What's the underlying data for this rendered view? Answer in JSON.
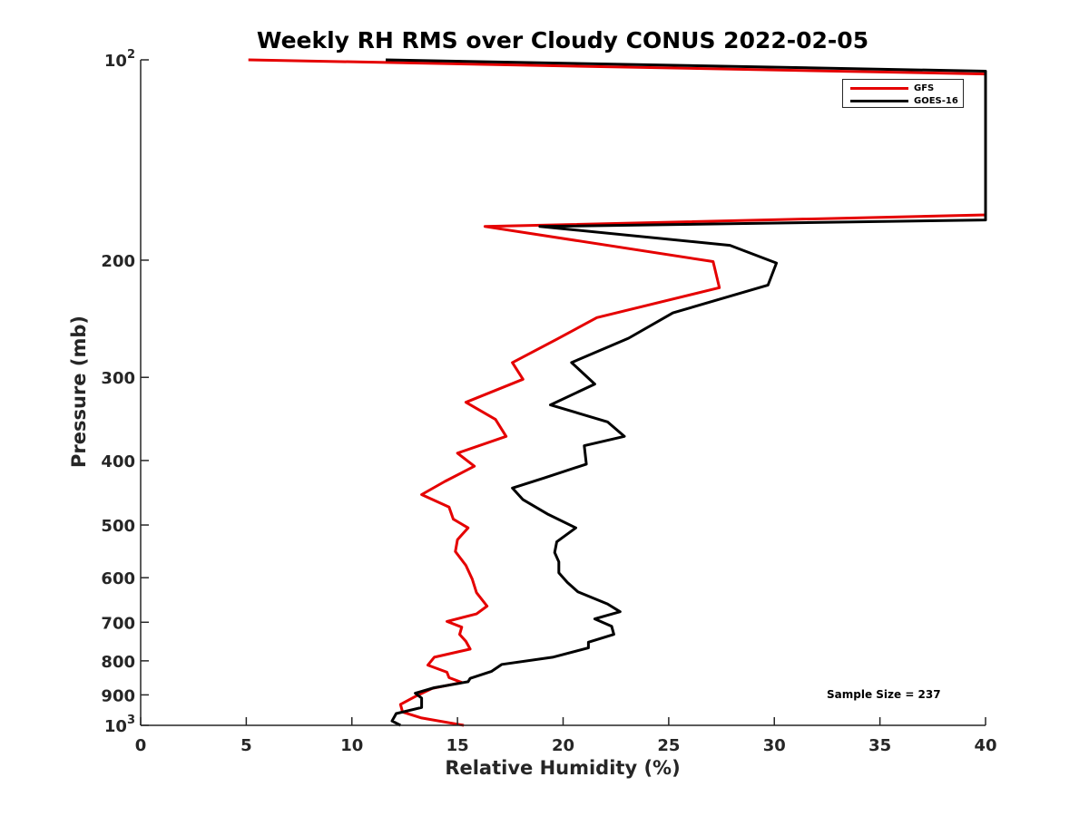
{
  "chart_data": {
    "type": "line",
    "title": "Weekly RH RMS over Cloudy CONUS 2022-02-05",
    "xlabel": "Relative Humidity (%)",
    "ylabel": "Pressure (mb)",
    "xlim": [
      0,
      40
    ],
    "ylim": [
      100,
      1000
    ],
    "y_scale": "log",
    "y_reversed": true,
    "grid": false,
    "legend_position": "top-right",
    "xticks": [
      "0",
      "5",
      "10",
      "15",
      "20",
      "25",
      "30",
      "35",
      "40"
    ],
    "yticks": [
      {
        "value": 100,
        "base": "10",
        "exp": "2"
      },
      {
        "value": 200,
        "label": "200"
      },
      {
        "value": 300,
        "label": "300"
      },
      {
        "value": 400,
        "label": "400"
      },
      {
        "value": 500,
        "label": "500"
      },
      {
        "value": 600,
        "label": "600"
      },
      {
        "value": 700,
        "label": "700"
      },
      {
        "value": 800,
        "label": "800"
      },
      {
        "value": 900,
        "label": "900"
      },
      {
        "value": 1000,
        "base": "10",
        "exp": "3"
      }
    ],
    "annotation": "Sample Size = 237",
    "series": [
      {
        "name": "GFS",
        "color": "#e50000",
        "points": [
          [
            5.1,
            100
          ],
          [
            40,
            105
          ],
          [
            40,
            171
          ],
          [
            16.3,
            178
          ],
          [
            27.1,
            201
          ],
          [
            27.4,
            220
          ],
          [
            21.6,
            244
          ],
          [
            19.7,
            263
          ],
          [
            17.6,
            285
          ],
          [
            18.1,
            302
          ],
          [
            15.4,
            327
          ],
          [
            16.8,
            347
          ],
          [
            17.3,
            368
          ],
          [
            15.0,
            390
          ],
          [
            15.8,
            408
          ],
          [
            14.4,
            430
          ],
          [
            13.3,
            450
          ],
          [
            14.6,
            470
          ],
          [
            14.8,
            490
          ],
          [
            15.5,
            505
          ],
          [
            15.0,
            526
          ],
          [
            14.9,
            548
          ],
          [
            15.4,
            575
          ],
          [
            15.7,
            603
          ],
          [
            15.9,
            632
          ],
          [
            16.4,
            662
          ],
          [
            15.9,
            680
          ],
          [
            14.5,
            698
          ],
          [
            15.2,
            712
          ],
          [
            15.1,
            730
          ],
          [
            15.4,
            748
          ],
          [
            15.6,
            768
          ],
          [
            13.9,
            790
          ],
          [
            13.6,
            812
          ],
          [
            14.5,
            832
          ],
          [
            14.6,
            848
          ],
          [
            15.2,
            862
          ],
          [
            13.8,
            880
          ],
          [
            13.0,
            905
          ],
          [
            12.3,
            930
          ],
          [
            12.4,
            955
          ],
          [
            13.3,
            975
          ],
          [
            15.3,
            1000
          ]
        ]
      },
      {
        "name": "GOES-16",
        "color": "#000000",
        "points": [
          [
            11.6,
            100
          ],
          [
            40,
            104
          ],
          [
            40,
            174
          ],
          [
            18.9,
            178
          ],
          [
            27.9,
            190
          ],
          [
            30.1,
            202
          ],
          [
            29.7,
            218
          ],
          [
            25.2,
            240
          ],
          [
            23.1,
            262
          ],
          [
            20.4,
            285
          ],
          [
            21.5,
            307
          ],
          [
            19.4,
            330
          ],
          [
            22.1,
            350
          ],
          [
            22.9,
            368
          ],
          [
            21.0,
            380
          ],
          [
            21.1,
            405
          ],
          [
            19.1,
            425
          ],
          [
            17.6,
            440
          ],
          [
            18.1,
            458
          ],
          [
            19.3,
            482
          ],
          [
            20.6,
            505
          ],
          [
            19.7,
            530
          ],
          [
            19.6,
            550
          ],
          [
            19.8,
            568
          ],
          [
            19.8,
            590
          ],
          [
            20.2,
            610
          ],
          [
            20.7,
            630
          ],
          [
            22.1,
            657
          ],
          [
            22.7,
            675
          ],
          [
            21.5,
            692
          ],
          [
            22.3,
            710
          ],
          [
            22.4,
            730
          ],
          [
            21.2,
            750
          ],
          [
            21.2,
            765
          ],
          [
            19.5,
            790
          ],
          [
            17.1,
            810
          ],
          [
            16.6,
            830
          ],
          [
            15.6,
            850
          ],
          [
            15.5,
            860
          ],
          [
            13.9,
            878
          ],
          [
            13.0,
            895
          ],
          [
            13.3,
            910
          ],
          [
            13.3,
            940
          ],
          [
            12.1,
            960
          ],
          [
            11.9,
            985
          ],
          [
            12.3,
            1000
          ]
        ]
      }
    ]
  }
}
